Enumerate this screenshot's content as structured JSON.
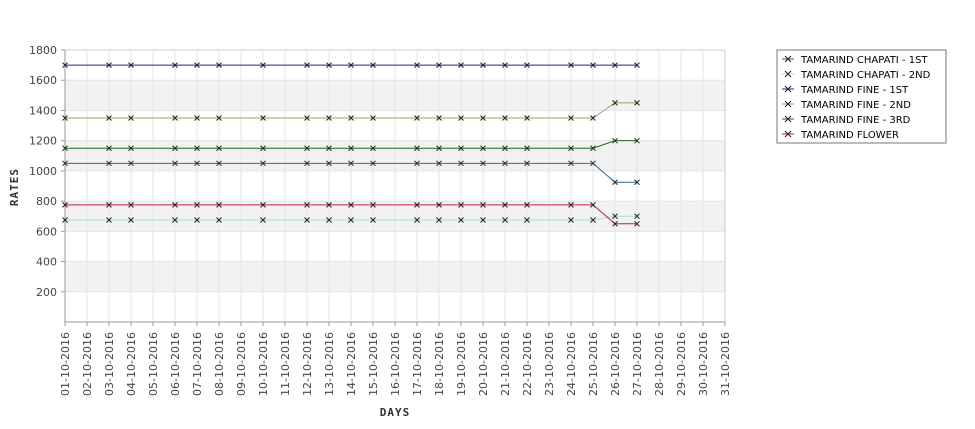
{
  "chart_data": {
    "type": "line",
    "title": "",
    "xlabel": "DAYS",
    "ylabel": "RATES",
    "ylim": [
      0,
      1800
    ],
    "yticks": [
      200,
      400,
      600,
      800,
      1000,
      1200,
      1400,
      1600,
      1800
    ],
    "grid": true,
    "legend_position": "right",
    "categories": [
      "01-10-2016",
      "02-10-2016",
      "03-10-2016",
      "04-10-2016",
      "05-10-2016",
      "06-10-2016",
      "07-10-2016",
      "08-10-2016",
      "09-10-2016",
      "10-10-2016",
      "11-10-2016",
      "12-10-2016",
      "13-10-2016",
      "14-10-2016",
      "15-10-2016",
      "16-10-2016",
      "17-10-2016",
      "18-10-2016",
      "19-10-2016",
      "20-10-2016",
      "21-10-2016",
      "22-10-2016",
      "23-10-2016",
      "24-10-2016",
      "25-10-2016",
      "26-10-2016",
      "27-10-2016",
      "28-10-2016",
      "29-10-2016",
      "30-10-2016",
      "31-10-2016"
    ],
    "series": [
      {
        "name": "TAMARIND CHAPATI - 1ST",
        "color": "#336699",
        "values": [
          1050,
          null,
          1050,
          1050,
          null,
          1050,
          1050,
          1050,
          null,
          1050,
          null,
          1050,
          1050,
          1050,
          1050,
          null,
          1050,
          1050,
          1050,
          1050,
          1050,
          1050,
          null,
          1050,
          1050,
          925,
          925,
          null,
          null,
          null,
          null
        ]
      },
      {
        "name": "TAMARIND CHAPATI - 2ND",
        "color": "#add8e6",
        "values": [
          675,
          null,
          675,
          675,
          null,
          675,
          675,
          675,
          null,
          675,
          null,
          675,
          675,
          675,
          675,
          null,
          675,
          675,
          675,
          675,
          675,
          675,
          null,
          675,
          675,
          700,
          700,
          null,
          null,
          null,
          null
        ]
      },
      {
        "name": "TAMARIND FINE - 1ST",
        "color": "#2b1b8c",
        "values": [
          1700,
          null,
          1700,
          1700,
          null,
          1700,
          1700,
          1700,
          null,
          1700,
          null,
          1700,
          1700,
          1700,
          1700,
          null,
          1700,
          1700,
          1700,
          1700,
          1700,
          1700,
          null,
          1700,
          1700,
          1700,
          1700,
          null,
          null,
          null,
          null
        ]
      },
      {
        "name": "TAMARIND FINE - 2ND",
        "color": "#a6a05a",
        "values": [
          1350,
          null,
          1350,
          1350,
          null,
          1350,
          1350,
          1350,
          null,
          1350,
          null,
          1350,
          1350,
          1350,
          1350,
          null,
          1350,
          1350,
          1350,
          1350,
          1350,
          1350,
          null,
          1350,
          1350,
          1450,
          1450,
          null,
          null,
          null,
          null
        ]
      },
      {
        "name": "TAMARIND FINE - 3RD",
        "color": "#1a6b1a",
        "values": [
          1150,
          null,
          1150,
          1150,
          null,
          1150,
          1150,
          1150,
          null,
          1150,
          null,
          1150,
          1150,
          1150,
          1150,
          null,
          1150,
          1150,
          1150,
          1150,
          1150,
          1150,
          null,
          1150,
          1150,
          1200,
          1200,
          null,
          null,
          null,
          null
        ]
      },
      {
        "name": "TAMARIND FLOWER",
        "color": "#c2185b",
        "values": [
          775,
          null,
          775,
          775,
          null,
          775,
          775,
          775,
          null,
          775,
          null,
          775,
          775,
          775,
          775,
          null,
          775,
          775,
          775,
          775,
          775,
          775,
          null,
          775,
          775,
          650,
          650,
          null,
          null,
          null,
          null
        ]
      }
    ]
  }
}
